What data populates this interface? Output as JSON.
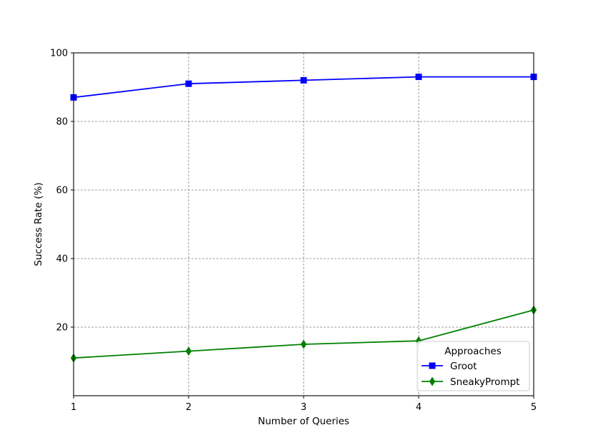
{
  "chart_data": {
    "type": "line",
    "xlabel": "Number of Queries",
    "ylabel": "Success Rate (%)",
    "x": [
      1,
      2,
      3,
      4,
      5
    ],
    "xlim": [
      1,
      5
    ],
    "ylim": [
      0,
      100
    ],
    "xticks": [
      "1",
      "2",
      "3",
      "4",
      "5"
    ],
    "yticks": [
      "20",
      "40",
      "60",
      "80",
      "100"
    ],
    "grid": true,
    "legend": {
      "title": "Approaches",
      "placement": "lower-right"
    },
    "series": [
      {
        "name": "Groot",
        "values": [
          87,
          91,
          92,
          93,
          93
        ],
        "color": "#0000ff",
        "marker": "square"
      },
      {
        "name": "SneakyPrompt",
        "values": [
          11,
          13,
          15,
          16,
          25
        ],
        "color": "#008000",
        "marker": "diamond"
      }
    ]
  }
}
